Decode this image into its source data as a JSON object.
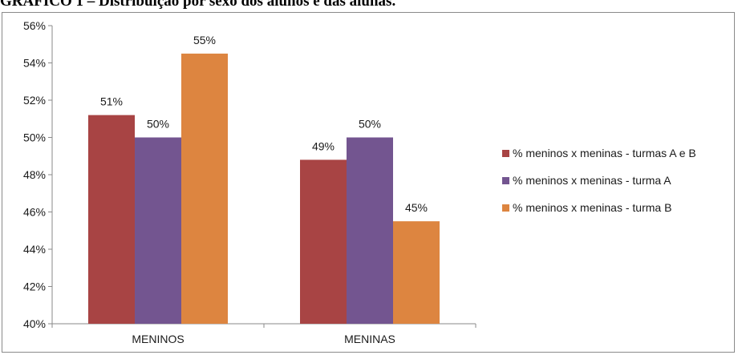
{
  "title": "GRÁFICO 1 – Distribuição por sexo dos alunos e das alunas.",
  "chart_data": {
    "type": "bar",
    "title": "GRÁFICO 1 – Distribuição por sexo dos alunos e das alunas.",
    "categories": [
      "MENINOS",
      "MENINAS"
    ],
    "ylim": [
      40,
      56
    ],
    "yticks": [
      "40%",
      "42%",
      "44%",
      "46%",
      "48%",
      "50%",
      "52%",
      "54%",
      "56%"
    ],
    "y_unit": "%",
    "grid": false,
    "legend_position": "right",
    "series": [
      {
        "name": "% meninos x meninas - turmas A e B",
        "color": "#a84444",
        "values": [
          51.2,
          48.8
        ],
        "labels": [
          "51%",
          "49%"
        ]
      },
      {
        "name": "% meninos x meninas - turma A",
        "color": "#735590",
        "values": [
          50.0,
          50.0
        ],
        "labels": [
          "50%",
          "50%"
        ]
      },
      {
        "name": "% meninos x meninas - turma B",
        "color": "#dd8540",
        "values": [
          54.5,
          45.5
        ],
        "labels": [
          "55%",
          "45%"
        ]
      }
    ]
  }
}
